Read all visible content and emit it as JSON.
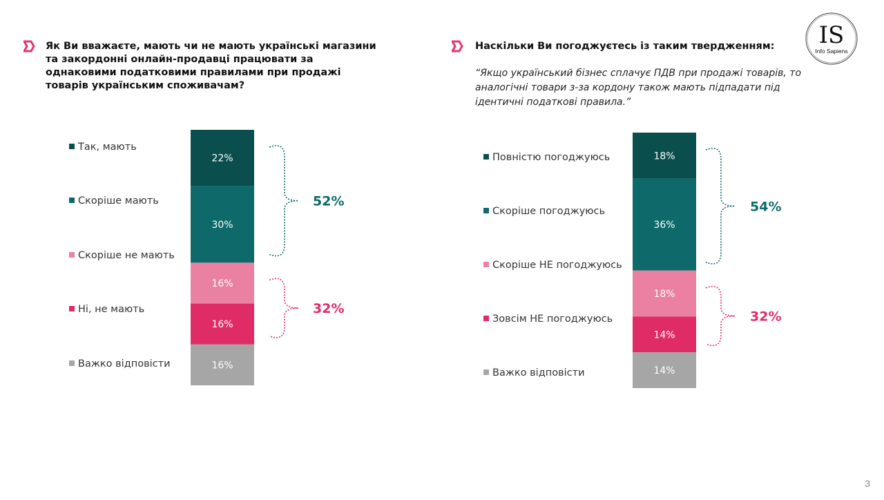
{
  "brand": {
    "logo_text": "IS",
    "logo_sub": "Info Sapiens"
  },
  "page_number": "3",
  "colors": {
    "accent": "#E2386F",
    "dark_teal": "#0A4F4E",
    "teal": "#0E6A6A",
    "light_pink": "#EA81A2",
    "pink": "#E02C66",
    "gray": "#A6A6A6",
    "bracket_teal": "#0E6A6A",
    "bracket_pink": "#E02C66"
  },
  "panels": [
    {
      "title": "Як Ви вважаєте, мають чи не мають українські магазини та закордонні онлайн-продавці працювати за однаковими податковими правилами при продажі товарів українським споживачам?",
      "subtitle": ""
    },
    {
      "title": "Наскільки Ви погоджуєтесь із таким твердженням:",
      "subtitle": "“Якщо український бізнес сплачує ПДВ при продажі товарів, то аналогічні товари з-за кордону також мають підпадати під ідентичні податкові правила.”"
    }
  ],
  "chart_data": [
    {
      "type": "bar",
      "stacked": true,
      "categories": [
        "Так, мають",
        "Скоріше мають",
        "Скоріше не мають",
        "Ні, не мають",
        "Важко відповісти"
      ],
      "values": [
        22,
        30,
        16,
        16,
        16
      ],
      "labels": [
        "22%",
        "30%",
        "16%",
        "16%",
        "16%"
      ],
      "colors": [
        "#0A4F4E",
        "#0E6A6A",
        "#EA81A2",
        "#E02C66",
        "#A6A6A6"
      ],
      "groups": [
        {
          "label": "52%",
          "from": 0,
          "to": 1,
          "color": "#0E6A6A"
        },
        {
          "label": "32%",
          "from": 2,
          "to": 3,
          "color": "#E02C66"
        }
      ]
    },
    {
      "type": "bar",
      "stacked": true,
      "categories": [
        "Повністю погоджуюсь",
        "Скоріше погоджуюсь",
        "Скоріше НЕ погоджуюсь",
        "Зовсім НЕ погоджуюсь",
        "Важко відповісти"
      ],
      "values": [
        18,
        36,
        18,
        14,
        14
      ],
      "labels": [
        "18%",
        "36%",
        "18%",
        "14%",
        "14%"
      ],
      "colors": [
        "#0A4F4E",
        "#0E6A6A",
        "#EA81A2",
        "#E02C66",
        "#A6A6A6"
      ],
      "groups": [
        {
          "label": "54%",
          "from": 0,
          "to": 1,
          "color": "#0E6A6A"
        },
        {
          "label": "32%",
          "from": 2,
          "to": 3,
          "color": "#E02C66"
        }
      ]
    }
  ]
}
